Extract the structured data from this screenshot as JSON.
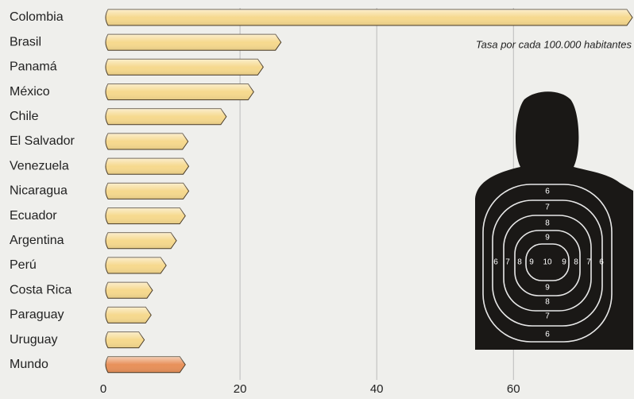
{
  "chart_data": {
    "type": "barh",
    "annotation": "Tasa por cada 100.000 habitantes",
    "categories": [
      "Colombia",
      "Brasil",
      "Panamá",
      "México",
      "Chile",
      "El Salvador",
      "Venezuela",
      "Nicaragua",
      "Ecuador",
      "Argentina",
      "Perú",
      "Costa Rica",
      "Paraguay",
      "Uruguay",
      "Mundo"
    ],
    "values": [
      77.4,
      26,
      23.4,
      22,
      18,
      12.4,
      12.5,
      12.5,
      12,
      10.7,
      9.2,
      7.2,
      7,
      6,
      12
    ],
    "colors": [
      "#f6d98e",
      "#f6d98e",
      "#f6d98e",
      "#f6d98e",
      "#f6d98e",
      "#f6d98e",
      "#f6d98e",
      "#f6d98e",
      "#f6d98e",
      "#f6d98e",
      "#f6d98e",
      "#f6d98e",
      "#f6d98e",
      "#f6d98e",
      "#e8915a"
    ],
    "xlim": [
      0,
      77.4
    ],
    "xticks": [
      0,
      20,
      40,
      60
    ],
    "grid": true
  },
  "target_ring_labels": [
    "6",
    "7",
    "8",
    "9",
    "10"
  ]
}
